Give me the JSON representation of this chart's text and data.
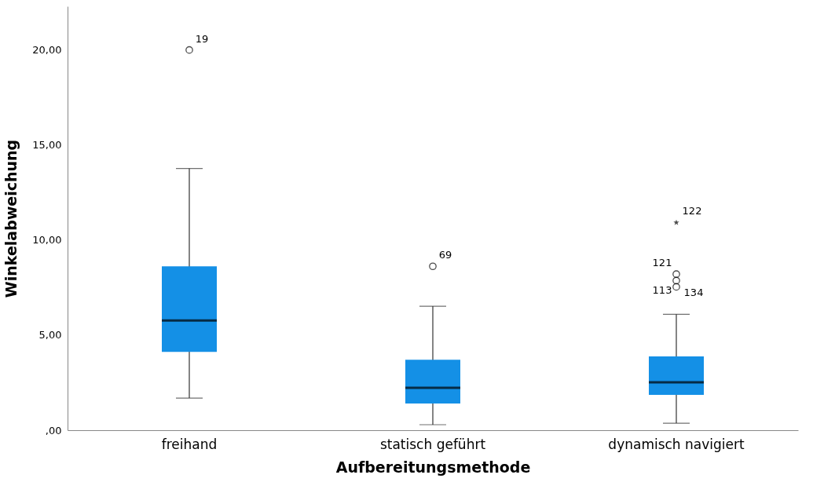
{
  "chart_data": {
    "type": "box",
    "xlabel": "Aufbereitungsmethode",
    "ylabel": "Winkelabweichung",
    "categories": [
      "freihand",
      "statisch geführt",
      "dynamisch navigiert"
    ],
    "boxes": [
      {
        "low": 1.69,
        "q1": 4.12,
        "median": 5.77,
        "q3": 8.62,
        "high": 13.77
      },
      {
        "low": 0.29,
        "q1": 1.4,
        "median": 2.23,
        "q3": 3.71,
        "high": 6.52
      },
      {
        "low": 0.37,
        "q1": 1.86,
        "median": 2.52,
        "q3": 3.88,
        "high": 6.1
      }
    ],
    "color": "#1490e6",
    "series": [
      {
        "type": "scatter",
        "marker": "circle",
        "color": "#000000",
        "x": [
          "freihand",
          "statisch geführt",
          "dynamisch navigiert",
          "dynamisch navigiert",
          "dynamisch navigiert"
        ],
        "values": [
          20.0,
          8.62,
          8.21,
          7.87,
          7.54
        ]
      },
      {
        "type": "scatter",
        "marker": "star",
        "color": "#000000",
        "x": [
          "dynamisch navigiert"
        ],
        "values": [
          10.92
        ]
      }
    ],
    "ylim": [
      0,
      22.3
    ],
    "yticks": [
      {
        "value": 0,
        "label": ",00"
      },
      {
        "value": 5,
        "label": "5,00"
      },
      {
        "value": 10,
        "label": "10,00"
      },
      {
        "value": 15,
        "label": "15,00"
      },
      {
        "value": 20,
        "label": "20,00"
      }
    ],
    "annotations": [
      {
        "text": "19",
        "x": "freihand",
        "y": 20.0
      },
      {
        "text": "69",
        "x": "statisch geführt",
        "y": 8.62
      },
      {
        "text": "122",
        "x": "dynamisch navigiert",
        "y": 10.92
      },
      {
        "text": "121",
        "x": "dynamisch navigiert",
        "y": 8.21
      },
      {
        "text": "113",
        "x": "dynamisch navigiert",
        "y": 7.54
      },
      {
        "text": "134",
        "x": "dynamisch navigiert",
        "y": 7.54
      }
    ],
    "grid": false
  }
}
